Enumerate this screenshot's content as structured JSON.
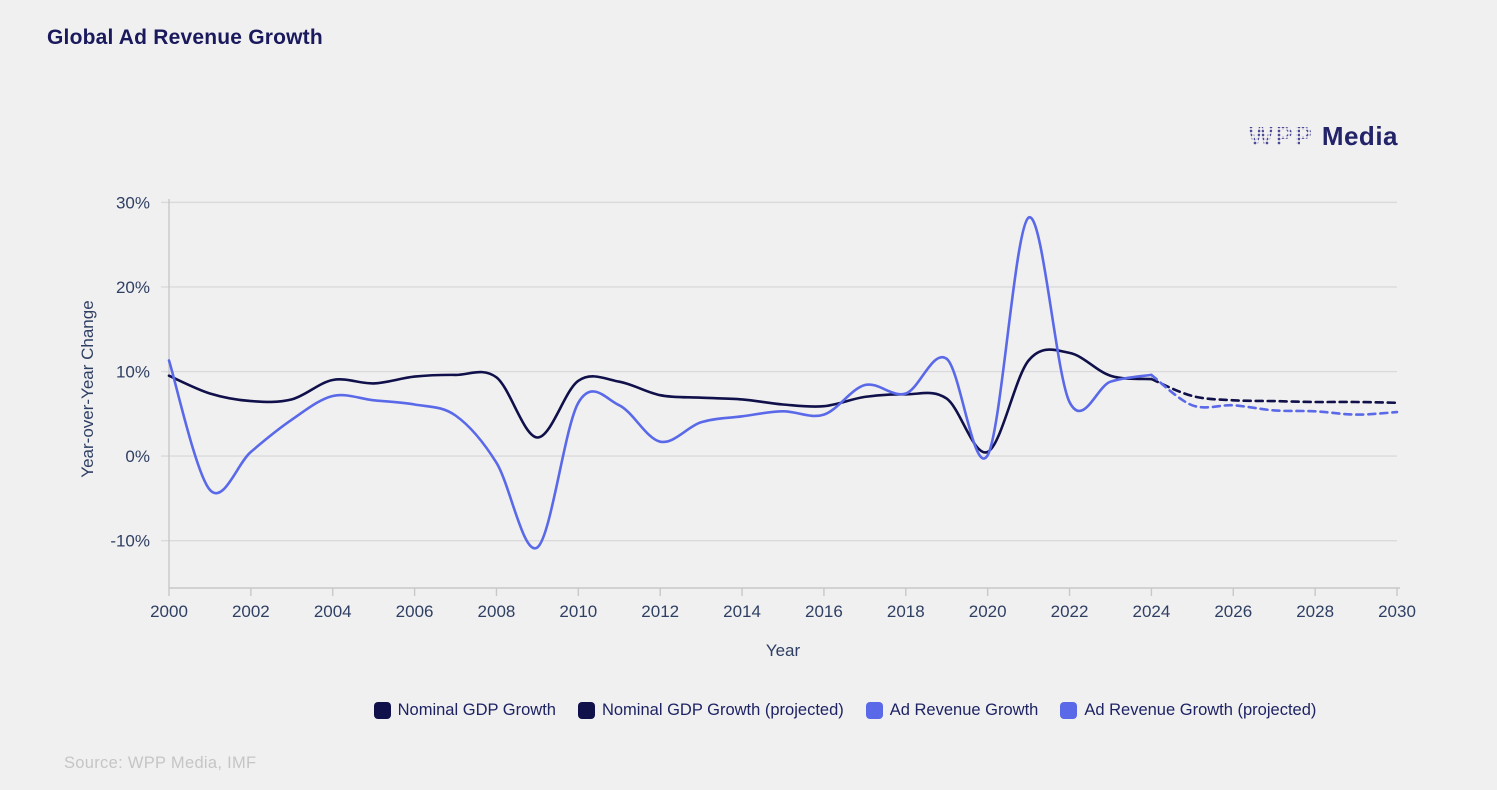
{
  "page": {
    "title": "Global Ad Revenue Growth",
    "source": "Source: WPP Media, IMF",
    "brand": {
      "wpp": "WPP",
      "media": "Media"
    }
  },
  "colors": {
    "background": "#f1f0f1",
    "gdp_line": "#10104a",
    "ad_line": "#5a69e8",
    "gridline": "#dbdadb",
    "axis_line": "#c8c7c9",
    "tick_text": "#2e3f63",
    "title_text": "#19195c",
    "source_text": "#c6c5c6"
  },
  "chart_data": {
    "type": "line",
    "title": "Global Ad Revenue Growth",
    "xlabel": "Year",
    "ylabel": "Year-over-Year Change",
    "xlim": [
      2000,
      2030
    ],
    "ylim": [
      -15.6,
      30.4
    ],
    "grid": "horizontal",
    "legend_position": "bottom",
    "x_ticks": [
      {
        "value": 2000,
        "label": "2000"
      },
      {
        "value": 2002,
        "label": "2002"
      },
      {
        "value": 2004,
        "label": "2004"
      },
      {
        "value": 2006,
        "label": "2006"
      },
      {
        "value": 2008,
        "label": "2008"
      },
      {
        "value": 2010,
        "label": "2010"
      },
      {
        "value": 2012,
        "label": "2012"
      },
      {
        "value": 2014,
        "label": "2014"
      },
      {
        "value": 2016,
        "label": "2016"
      },
      {
        "value": 2018,
        "label": "2018"
      },
      {
        "value": 2020,
        "label": "2020"
      },
      {
        "value": 2022,
        "label": "2022"
      },
      {
        "value": 2024,
        "label": "2024"
      },
      {
        "value": 2026,
        "label": "2026"
      },
      {
        "value": 2028,
        "label": "2028"
      },
      {
        "value": 2030,
        "label": "2030"
      }
    ],
    "y_ticks": [
      {
        "value": -10,
        "label": "-10%"
      },
      {
        "value": 0,
        "label": "0%"
      },
      {
        "value": 10,
        "label": "10%"
      },
      {
        "value": 20,
        "label": "20%"
      },
      {
        "value": 30,
        "label": "30%"
      }
    ],
    "series": [
      {
        "name": "Nominal GDP Growth",
        "color": "#10104a",
        "style": "solid",
        "x": [
          2000,
          2001,
          2002,
          2003,
          2004,
          2005,
          2006,
          2007,
          2008,
          2009,
          2010,
          2011,
          2012,
          2013,
          2014,
          2015,
          2016,
          2017,
          2018,
          2019,
          2020,
          2021,
          2022,
          2023,
          2024
        ],
        "values": [
          9.5,
          7.4,
          6.5,
          6.7,
          9.0,
          8.6,
          9.4,
          9.6,
          9.3,
          2.2,
          8.9,
          8.8,
          7.2,
          6.9,
          6.7,
          6.1,
          5.9,
          7.0,
          7.3,
          6.8,
          0.5,
          11.3,
          12.2,
          9.5,
          9.1
        ]
      },
      {
        "name": "Nominal GDP Growth (projected)",
        "color": "#10104a",
        "style": "dashed",
        "x": [
          2024,
          2025,
          2026,
          2027,
          2028,
          2029,
          2030
        ],
        "values": [
          9.1,
          7.1,
          6.6,
          6.5,
          6.4,
          6.4,
          6.3
        ]
      },
      {
        "name": "Ad Revenue Growth",
        "color": "#5a69e8",
        "style": "solid",
        "x": [
          2000,
          2001,
          2002,
          2003,
          2004,
          2005,
          2006,
          2007,
          2008,
          2009,
          2010,
          2011,
          2012,
          2013,
          2014,
          2015,
          2016,
          2017,
          2018,
          2019,
          2020,
          2021,
          2022,
          2023,
          2024
        ],
        "values": [
          11.3,
          -4.0,
          0.5,
          4.3,
          7.1,
          6.6,
          6.1,
          4.8,
          -0.8,
          -10.8,
          6.3,
          6.0,
          1.7,
          4.0,
          4.7,
          5.3,
          4.9,
          8.4,
          7.4,
          11.5,
          0.1,
          28.2,
          6.4,
          8.8,
          9.6
        ]
      },
      {
        "name": "Ad Revenue Growth (projected)",
        "color": "#5a69e8",
        "style": "dashed",
        "x": [
          2024,
          2025,
          2026,
          2027,
          2028,
          2029,
          2030
        ],
        "values": [
          9.6,
          6.0,
          6.0,
          5.4,
          5.3,
          4.9,
          5.2
        ]
      }
    ]
  }
}
